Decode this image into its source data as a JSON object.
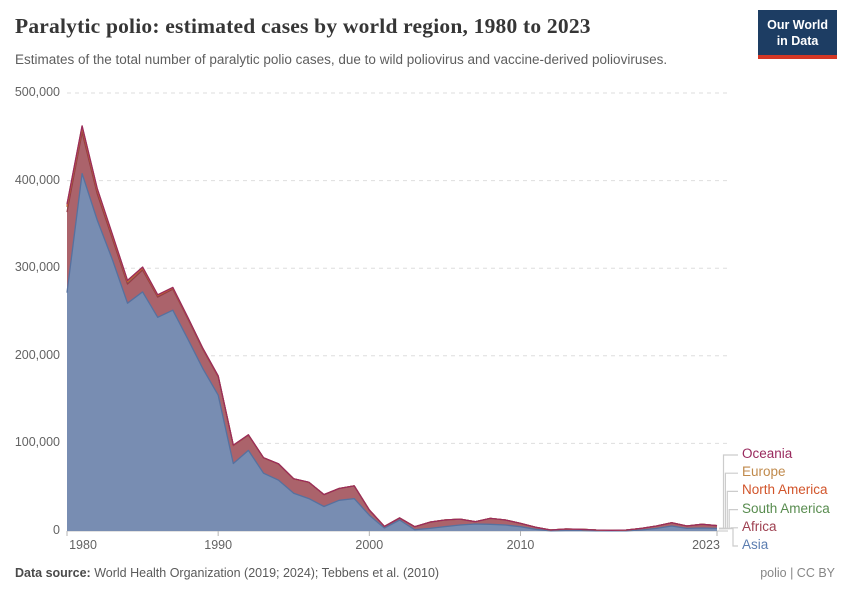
{
  "title": "Paralytic polio: estimated cases by world region, 1980 to 2023",
  "subtitle": "Estimates of the total number of paralytic polio cases, due to wild poliovirus and vaccine-derived polioviruses.",
  "logo": {
    "line1": "Our World",
    "line2": "in Data",
    "bg": "#1D3D63",
    "accent": "#D43725"
  },
  "chart_data": {
    "type": "area",
    "stacked": true,
    "title": "Paralytic polio: estimated cases by world region, 1980 to 2023",
    "xlabel": "",
    "ylabel": "",
    "ylim": [
      0,
      500000
    ],
    "grid": "horizontal-dashed",
    "legend_position": "right",
    "x": [
      1980,
      1981,
      1982,
      1983,
      1984,
      1985,
      1986,
      1987,
      1988,
      1989,
      1990,
      1991,
      1992,
      1993,
      1994,
      1995,
      1996,
      1997,
      1998,
      1999,
      2000,
      2001,
      2002,
      2003,
      2004,
      2005,
      2006,
      2007,
      2008,
      2009,
      2010,
      2011,
      2012,
      2013,
      2014,
      2015,
      2016,
      2017,
      2018,
      2019,
      2020,
      2021,
      2022,
      2023
    ],
    "series": [
      {
        "name": "Asia",
        "color": "#56719F",
        "values": [
          272000,
          408000,
          355000,
          310000,
          260000,
          273000,
          244000,
          252000,
          219000,
          185000,
          155000,
          77000,
          92000,
          66000,
          58000,
          43000,
          37000,
          28000,
          35000,
          37000,
          18000,
          3400,
          12500,
          1500,
          3000,
          5000,
          6800,
          8000,
          7600,
          6800,
          4900,
          1900,
          200,
          400,
          400,
          200,
          150,
          200,
          1100,
          3000,
          5700,
          3000,
          3400,
          3000
        ]
      },
      {
        "name": "Africa",
        "color": "#963C46",
        "values": [
          92000,
          47000,
          30000,
          24000,
          22000,
          25000,
          23000,
          24000,
          23000,
          22000,
          21000,
          20500,
          17500,
          17500,
          18500,
          16500,
          18500,
          13500,
          13500,
          14500,
          6000,
          1800,
          2300,
          3400,
          7000,
          7500,
          6800,
          2600,
          6800,
          5700,
          3800,
          2300,
          900,
          1900,
          1500,
          900,
          650,
          900,
          1900,
          2700,
          3800,
          2700,
          4200,
          3000
        ]
      },
      {
        "name": "South America",
        "color": "#588C4F",
        "values": [
          6000,
          5000,
          4000,
          3200,
          2600,
          2100,
          1700,
          1300,
          1000,
          700,
          500,
          250,
          60,
          20,
          10,
          5,
          3,
          2,
          1,
          1,
          0,
          0,
          0,
          0,
          0,
          0,
          0,
          0,
          0,
          0,
          0,
          0,
          0,
          0,
          0,
          0,
          0,
          0,
          0,
          0,
          0,
          0,
          0,
          0
        ]
      },
      {
        "name": "North America",
        "color": "#D2552B",
        "values": [
          350,
          250,
          180,
          130,
          90,
          60,
          40,
          25,
          15,
          8,
          4,
          2,
          1,
          0,
          0,
          0,
          0,
          0,
          0,
          0,
          0,
          0,
          0,
          0,
          0,
          0,
          0,
          0,
          0,
          0,
          0,
          0,
          0,
          0,
          0,
          0,
          0,
          0,
          0,
          0,
          0,
          0,
          0,
          0
        ]
      },
      {
        "name": "Europe",
        "color": "#C08A4C",
        "values": [
          2600,
          2100,
          1800,
          1500,
          1300,
          1100,
          900,
          750,
          600,
          480,
          380,
          300,
          230,
          180,
          140,
          110,
          80,
          60,
          45,
          30,
          20,
          12,
          8,
          5,
          3,
          2,
          1,
          1,
          0,
          0,
          0,
          0,
          0,
          0,
          0,
          0,
          0,
          0,
          0,
          0,
          0,
          0,
          0,
          0
        ]
      },
      {
        "name": "Oceania",
        "color": "#992A5E",
        "values": [
          160,
          130,
          100,
          80,
          60,
          45,
          35,
          25,
          18,
          12,
          8,
          5,
          3,
          2,
          1,
          1,
          0,
          0,
          0,
          0,
          0,
          0,
          0,
          0,
          0,
          0,
          0,
          0,
          0,
          0,
          0,
          0,
          0,
          0,
          0,
          0,
          0,
          0,
          0,
          0,
          0,
          0,
          0,
          0
        ]
      }
    ],
    "yticks": [
      {
        "value": 0,
        "label": "0"
      },
      {
        "value": 100000,
        "label": "100,000"
      },
      {
        "value": 200000,
        "label": "200,000"
      },
      {
        "value": 300000,
        "label": "300,000"
      },
      {
        "value": 400000,
        "label": "400,000"
      },
      {
        "value": 500000,
        "label": "500,000"
      }
    ],
    "xticks": [
      "1980",
      "1990",
      "2000",
      "2010",
      "2023"
    ]
  },
  "legend": {
    "items": [
      {
        "label": "Oceania",
        "color": "#992A5E"
      },
      {
        "label": "Europe",
        "color": "#C08A4C"
      },
      {
        "label": "North America",
        "color": "#D2552B"
      },
      {
        "label": "South America",
        "color": "#588C4F"
      },
      {
        "label": "Africa",
        "color": "#9E4050"
      },
      {
        "label": "Asia",
        "color": "#5B7DB0"
      }
    ]
  },
  "footer": {
    "source_label": "Data source:",
    "source_text": " World Health Organization (2019; 2024); Tebbens et al. (2010)",
    "license": "polio | CC BY"
  }
}
